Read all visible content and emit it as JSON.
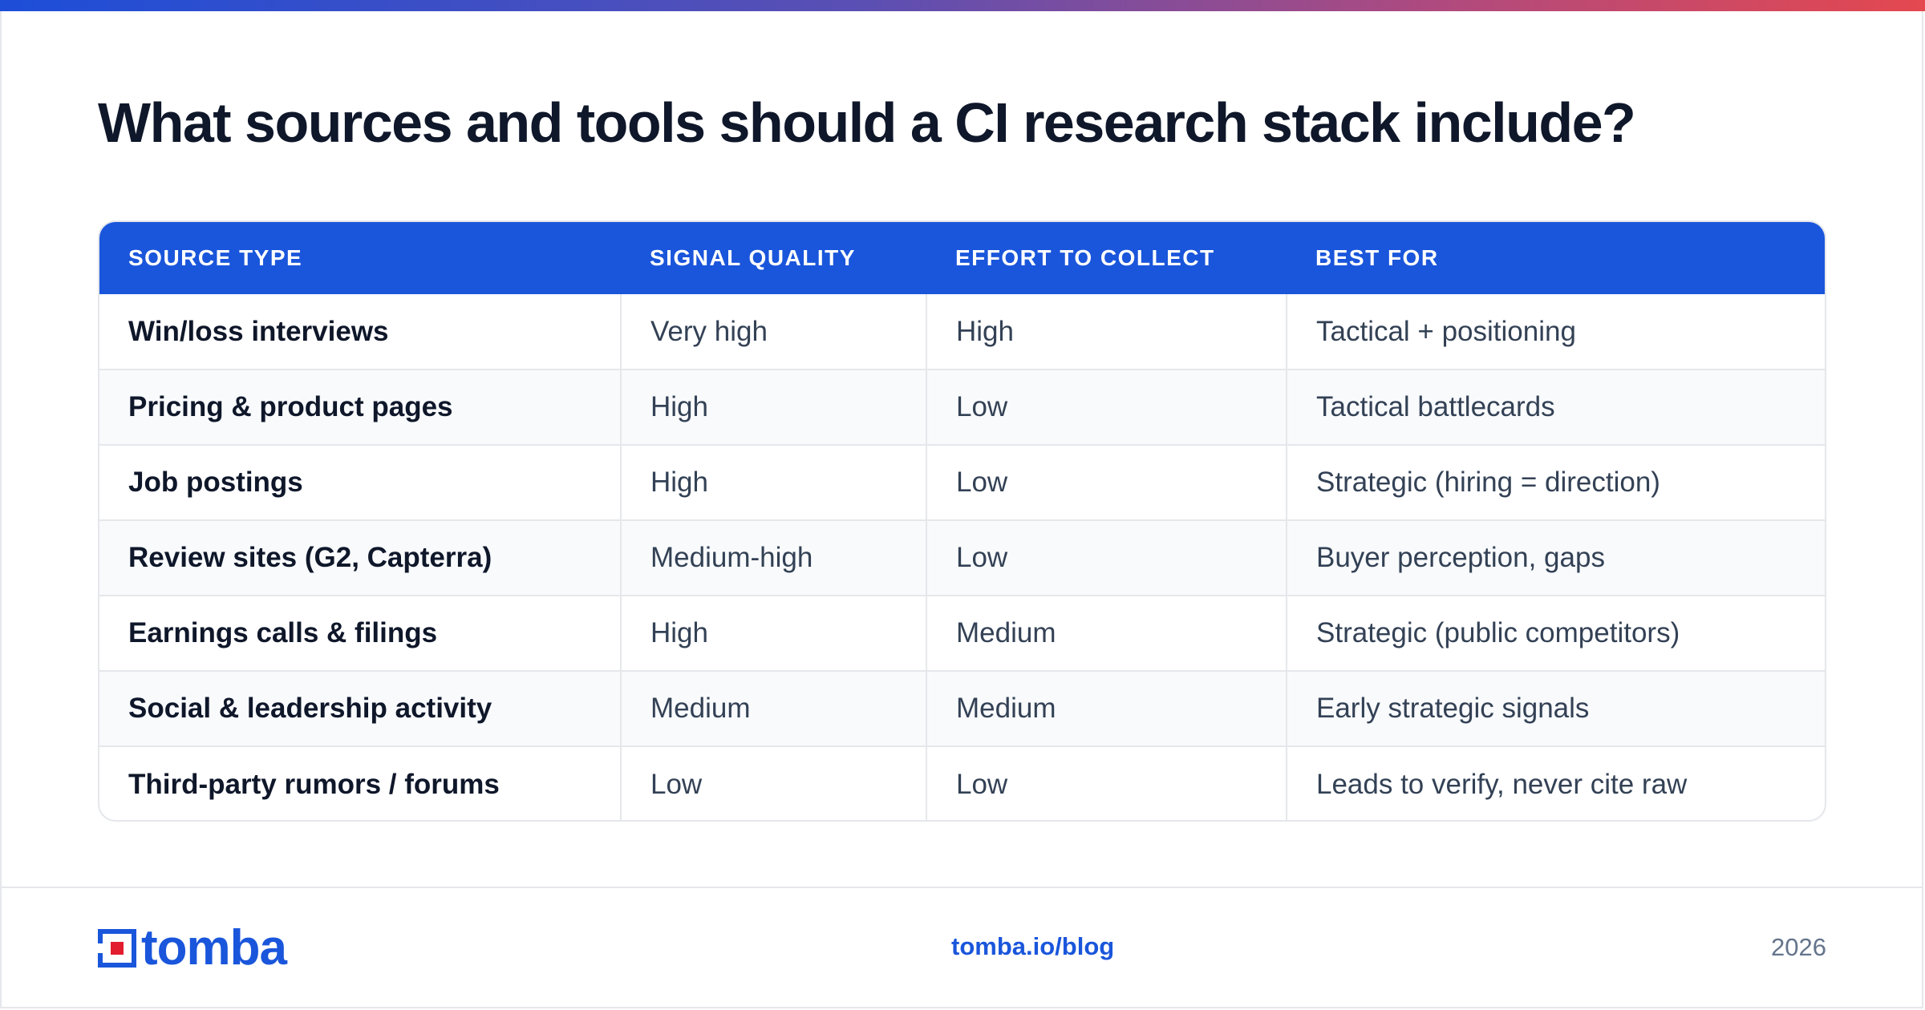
{
  "title": "What sources and tools should a CI research stack include?",
  "table": {
    "headers": [
      "SOURCE TYPE",
      "SIGNAL QUALITY",
      "EFFORT TO COLLECT",
      "BEST FOR"
    ],
    "rows": [
      [
        "Win/loss interviews",
        "Very high",
        "High",
        "Tactical + positioning"
      ],
      [
        "Pricing & product pages",
        "High",
        "Low",
        "Tactical battlecards"
      ],
      [
        "Job postings",
        "High",
        "Low",
        "Strategic (hiring = direction)"
      ],
      [
        "Review sites (G2, Capterra)",
        "Medium-high",
        "Low",
        "Buyer perception, gaps"
      ],
      [
        "Earnings calls & filings",
        "High",
        "Medium",
        "Strategic (public competitors)"
      ],
      [
        "Social & leadership activity",
        "Medium",
        "Medium",
        "Early strategic signals"
      ],
      [
        "Third-party rumors / forums",
        "Low",
        "Low",
        "Leads to verify, never cite raw"
      ]
    ]
  },
  "footer": {
    "logo_text": "tomba",
    "logo_icon": "tomba-logo-mark-icon",
    "link": "tomba.io/blog",
    "year": "2026"
  },
  "colors": {
    "accent": "#1a56db",
    "gradient_start": "#1d4ed8",
    "gradient_end": "#e4484f",
    "logo_red": "#e11d2e"
  }
}
